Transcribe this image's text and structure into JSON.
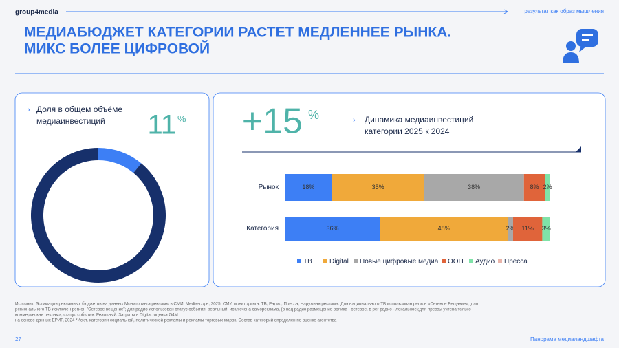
{
  "header": {
    "logo": "group4media",
    "tagline": "результат как образ мышления",
    "title_lines": [
      "МЕДИАБЮДЖЕТ КАТЕГОРИИ РАСТЕТ МЕДЛЕННЕЕ РЫНКА.",
      "МИКС БОЛЕЕ ЦИФРОВОЙ"
    ]
  },
  "left_panel": {
    "caption_lines": [
      "Доля в общем объёме",
      "медиаинвестиций"
    ],
    "big_number": "11",
    "big_unit": "%"
  },
  "right_panel": {
    "big_number": "+15",
    "big_unit": "%",
    "caption_lines": [
      "Динамика медиаинвестиций",
      "категории 2025 к 2024"
    ]
  },
  "chart_data": [
    {
      "type": "donut",
      "values": [
        11,
        89
      ],
      "colors": [
        "#3d7ff5",
        "#17306b"
      ]
    },
    {
      "type": "stacked-bar",
      "categories": [
        "Рынок",
        "Категория"
      ],
      "series": [
        {
          "name": "ТВ",
          "color": "#3d7ff5",
          "values": [
            18,
            36
          ],
          "value_labels": [
            "18%",
            "36%"
          ]
        },
        {
          "name": "Digital",
          "color": "#f0a93a",
          "values": [
            35,
            48
          ],
          "value_labels": [
            "35%",
            "48%"
          ]
        },
        {
          "name": "Новые цифровые медиа",
          "color": "#a8a8a8",
          "values": [
            38,
            2
          ],
          "value_labels": [
            "38%",
            "2%"
          ]
        },
        {
          "name": "ООН",
          "color": "#e0643a",
          "values": [
            8,
            11
          ],
          "value_labels": [
            "8%",
            "11%"
          ]
        },
        {
          "name": "Аудио",
          "color": "#7fe3a8",
          "values": [
            2,
            3
          ],
          "value_labels": [
            "2%",
            "3%"
          ]
        },
        {
          "name": "Пресса",
          "color": "#e9b4aa",
          "values": [
            0,
            0
          ]
        }
      ]
    }
  ],
  "footnote_lines": [
    "Источник: Эстимация рекламных бюджетов на данных Мониторинга рекламы в СМИ, Mediascope, 2025. СМИ мониторинга: ТВ, Радио, Пресса, Наружная реклама. Для национального ТВ использован регион «Сетевое Вещание»; для",
    "регионального ТВ исключен регион \"Сетевое вещание\"; для радио использован статус события: реальный, исключена самореклама, (в нац радио размещение ролика - сетевое, в рег радио - локальное);для прессы учтена только",
    "коммерческая реклама, статус события: Реальный. Затраты в Digital: оценка G4M",
    "на основе данных ЕРИР, 2024 *Искл. категории социальной, политической рекламы и рекламы торговых марок. Состав категорий определен по оценке агентства"
  ],
  "footer": {
    "page": "27",
    "label": "Панорама медиаландшафта"
  }
}
